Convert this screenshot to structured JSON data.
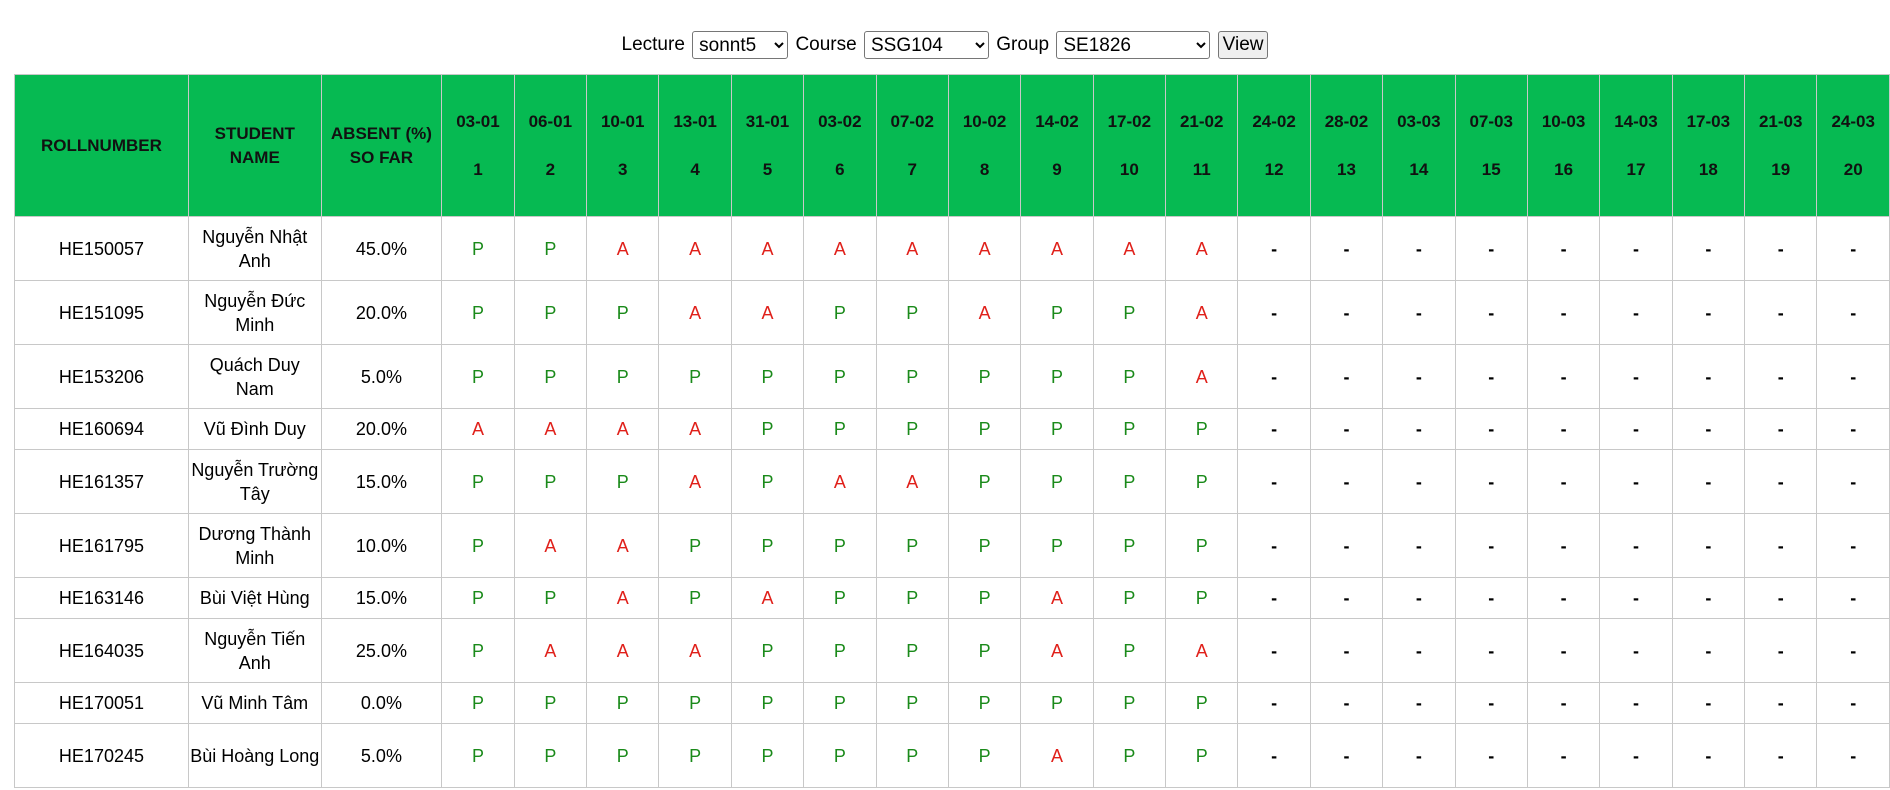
{
  "filters": {
    "lecture_label": "Lecture",
    "lecture_value": "sonnt5",
    "course_label": "Course",
    "course_value": "SSG104",
    "group_label": "Group",
    "group_value": "SE1826",
    "view_label": "View"
  },
  "table": {
    "header_roll": "ROLLNUMBER",
    "header_name": "STUDENT NAME",
    "header_absent": "ABSENT (%) SO FAR",
    "sessions": [
      {
        "date": "03-01",
        "num": "1"
      },
      {
        "date": "06-01",
        "num": "2"
      },
      {
        "date": "10-01",
        "num": "3"
      },
      {
        "date": "13-01",
        "num": "4"
      },
      {
        "date": "31-01",
        "num": "5"
      },
      {
        "date": "03-02",
        "num": "6"
      },
      {
        "date": "07-02",
        "num": "7"
      },
      {
        "date": "10-02",
        "num": "8"
      },
      {
        "date": "14-02",
        "num": "9"
      },
      {
        "date": "17-02",
        "num": "10"
      },
      {
        "date": "21-02",
        "num": "11"
      },
      {
        "date": "24-02",
        "num": "12"
      },
      {
        "date": "28-02",
        "num": "13"
      },
      {
        "date": "03-03",
        "num": "14"
      },
      {
        "date": "07-03",
        "num": "15"
      },
      {
        "date": "10-03",
        "num": "16"
      },
      {
        "date": "14-03",
        "num": "17"
      },
      {
        "date": "17-03",
        "num": "18"
      },
      {
        "date": "21-03",
        "num": "19"
      },
      {
        "date": "24-03",
        "num": "20"
      }
    ],
    "rows": [
      {
        "roll": "HE150057",
        "name": "Nguyễn Nhật Anh",
        "absent": "45.0%",
        "status": [
          "P",
          "P",
          "A",
          "A",
          "A",
          "A",
          "A",
          "A",
          "A",
          "A",
          "A",
          "-",
          "-",
          "-",
          "-",
          "-",
          "-",
          "-",
          "-",
          "-"
        ]
      },
      {
        "roll": "HE151095",
        "name": "Nguyễn Đức Minh",
        "absent": "20.0%",
        "status": [
          "P",
          "P",
          "P",
          "A",
          "A",
          "P",
          "P",
          "A",
          "P",
          "P",
          "A",
          "-",
          "-",
          "-",
          "-",
          "-",
          "-",
          "-",
          "-",
          "-"
        ]
      },
      {
        "roll": "HE153206",
        "name": "Quách Duy Nam",
        "absent": "5.0%",
        "status": [
          "P",
          "P",
          "P",
          "P",
          "P",
          "P",
          "P",
          "P",
          "P",
          "P",
          "A",
          "-",
          "-",
          "-",
          "-",
          "-",
          "-",
          "-",
          "-",
          "-"
        ]
      },
      {
        "roll": "HE160694",
        "name": "Vũ Đình Duy",
        "absent": "20.0%",
        "status": [
          "A",
          "A",
          "A",
          "A",
          "P",
          "P",
          "P",
          "P",
          "P",
          "P",
          "P",
          "-",
          "-",
          "-",
          "-",
          "-",
          "-",
          "-",
          "-",
          "-"
        ]
      },
      {
        "roll": "HE161357",
        "name": "Nguyễn Trường Tây",
        "absent": "15.0%",
        "status": [
          "P",
          "P",
          "P",
          "A",
          "P",
          "A",
          "A",
          "P",
          "P",
          "P",
          "P",
          "-",
          "-",
          "-",
          "-",
          "-",
          "-",
          "-",
          "-",
          "-"
        ]
      },
      {
        "roll": "HE161795",
        "name": "Dương Thành Minh",
        "absent": "10.0%",
        "status": [
          "P",
          "A",
          "A",
          "P",
          "P",
          "P",
          "P",
          "P",
          "P",
          "P",
          "P",
          "-",
          "-",
          "-",
          "-",
          "-",
          "-",
          "-",
          "-",
          "-"
        ]
      },
      {
        "roll": "HE163146",
        "name": "Bùi Việt Hùng",
        "absent": "15.0%",
        "status": [
          "P",
          "P",
          "A",
          "P",
          "A",
          "P",
          "P",
          "P",
          "A",
          "P",
          "P",
          "-",
          "-",
          "-",
          "-",
          "-",
          "-",
          "-",
          "-",
          "-"
        ]
      },
      {
        "roll": "HE164035",
        "name": "Nguyễn Tiến Anh",
        "absent": "25.0%",
        "status": [
          "P",
          "A",
          "A",
          "A",
          "P",
          "P",
          "P",
          "P",
          "A",
          "P",
          "A",
          "-",
          "-",
          "-",
          "-",
          "-",
          "-",
          "-",
          "-",
          "-"
        ]
      },
      {
        "roll": "HE170051",
        "name": "Vũ Minh Tâm",
        "absent": "0.0%",
        "status": [
          "P",
          "P",
          "P",
          "P",
          "P",
          "P",
          "P",
          "P",
          "P",
          "P",
          "P",
          "-",
          "-",
          "-",
          "-",
          "-",
          "-",
          "-",
          "-",
          "-"
        ]
      },
      {
        "roll": "HE170245",
        "name": "Bùi Hoàng Long",
        "absent": "5.0%",
        "status": [
          "P",
          "P",
          "P",
          "P",
          "P",
          "P",
          "P",
          "P",
          "A",
          "P",
          "P",
          "-",
          "-",
          "-",
          "-",
          "-",
          "-",
          "-",
          "-",
          "-"
        ]
      }
    ]
  },
  "colors": {
    "header_bg": "#06ba52",
    "present": "#1a8a1a",
    "absent": "#e0201a"
  }
}
